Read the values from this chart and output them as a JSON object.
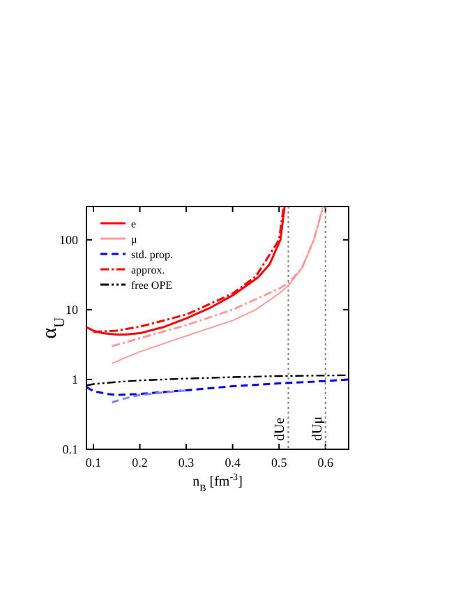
{
  "chart_data": {
    "type": "line",
    "xlabel": "n$_{B}$ [fm$^{-3}$]",
    "ylabel": "α$_{U}$",
    "xlim": [
      0.085,
      0.65
    ],
    "ylim": [
      0.1,
      300
    ],
    "xticks": [
      0.1,
      0.2,
      0.3,
      0.4,
      0.5,
      0.6
    ],
    "yticks": [
      0.1,
      1,
      10,
      100
    ],
    "log": "y",
    "grid": false,
    "legend": "top left",
    "series": [
      {
        "name": "e",
        "color": "#ff0000",
        "line_style": "solid",
        "x": [
          0.085,
          0.1,
          0.12,
          0.15,
          0.17,
          0.2,
          0.25,
          0.3,
          0.35,
          0.4,
          0.455,
          0.48,
          0.503,
          0.512
        ],
        "values": [
          5.6,
          5.0,
          4.6,
          4.4,
          4.4,
          4.6,
          5.6,
          7.5,
          10.5,
          16,
          29,
          45,
          100,
          300
        ]
      },
      {
        "name": "μ",
        "color": "#ff9a9a",
        "line_style": "solid",
        "x": [
          0.14,
          0.2,
          0.3,
          0.4,
          0.45,
          0.5,
          0.52,
          0.55,
          0.575,
          0.595
        ],
        "values": [
          1.7,
          2.5,
          4.2,
          7,
          10,
          17,
          22,
          40,
          100,
          300
        ]
      },
      {
        "name": "std. prop.",
        "color": "#0000ff",
        "line_style": "dashed",
        "x": [
          0.085,
          0.1,
          0.13,
          0.15,
          0.2,
          0.3,
          0.4,
          0.5,
          0.6,
          0.65
        ],
        "values": [
          0.78,
          0.68,
          0.62,
          0.6,
          0.62,
          0.7,
          0.8,
          0.88,
          0.95,
          1.0
        ]
      },
      {
        "name": "approx.",
        "color": "#ff0000",
        "line_style": "dashdot",
        "x": [
          0.1,
          0.15,
          0.2,
          0.3,
          0.4,
          0.45,
          0.5,
          0.51
        ],
        "values": [
          4.8,
          5.0,
          5.7,
          8.5,
          17,
          30,
          100,
          300
        ]
      },
      {
        "name": "free OPE",
        "color": "#000000",
        "line_style": "dashdotdot",
        "x": [
          0.085,
          0.1,
          0.15,
          0.2,
          0.3,
          0.4,
          0.5,
          0.6,
          0.65
        ],
        "values": [
          0.82,
          0.86,
          0.92,
          0.97,
          1.03,
          1.08,
          1.12,
          1.14,
          1.15
        ]
      },
      {
        "color": "#ff9a9a",
        "line_style": "dashdot",
        "x": [
          0.14,
          0.2,
          0.3,
          0.4,
          0.5,
          0.52,
          0.55,
          0.575,
          0.595
        ],
        "values": [
          3.0,
          3.9,
          6,
          10,
          20,
          24,
          40,
          100,
          300
        ]
      },
      {
        "color": "#8080ff",
        "line_style": "dashed",
        "x": [
          0.14,
          0.16,
          0.2,
          0.3
        ],
        "values": [
          0.47,
          0.52,
          0.6,
          0.7
        ]
      }
    ],
    "ref_lines": [
      {
        "axis": "x",
        "value": 0.52,
        "label": "dUe",
        "color": "#808080",
        "line_style": "dotted"
      },
      {
        "axis": "x",
        "value": 0.6,
        "label": "dUμ",
        "color": "#808080",
        "line_style": "dotted"
      }
    ]
  }
}
